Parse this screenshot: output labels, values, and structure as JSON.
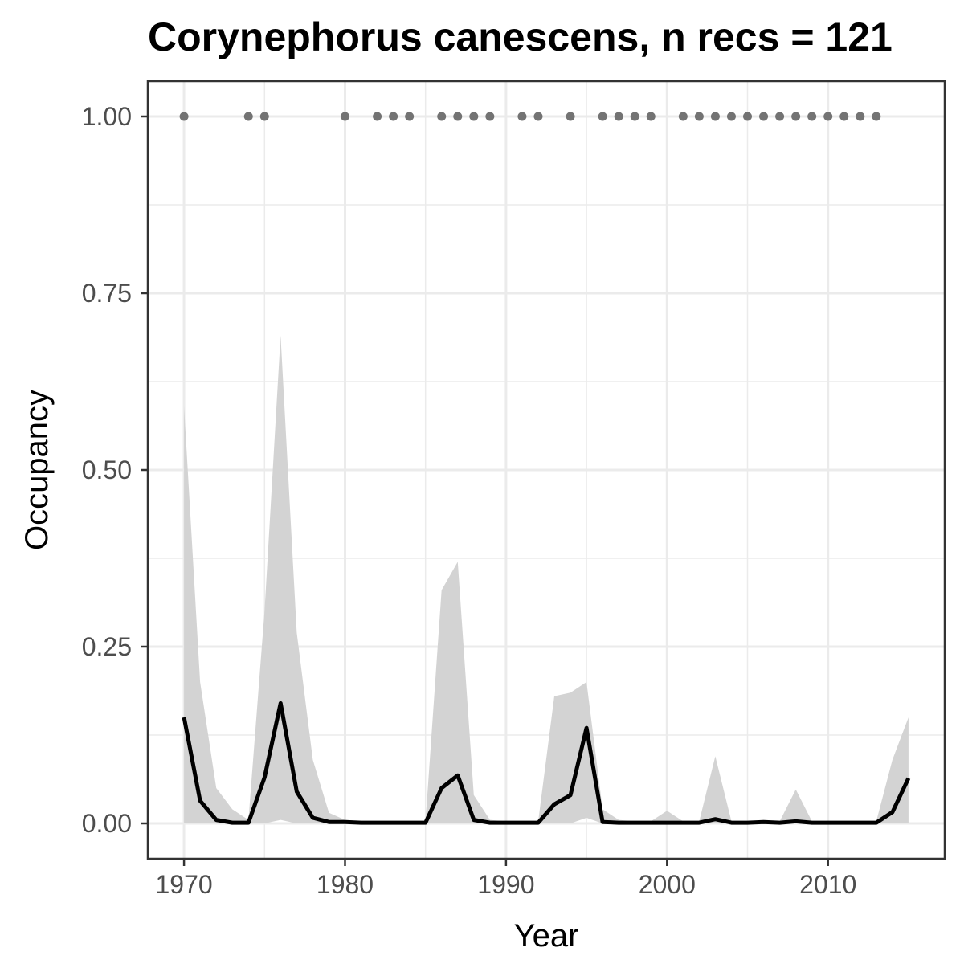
{
  "chart_data": {
    "type": "line",
    "title": "Corynephorus canescens, n recs = 121",
    "xlabel": "Year",
    "ylabel": "Occupancy",
    "xlim": [
      1967.75,
      2017.25
    ],
    "ylim": [
      -0.05,
      1.05
    ],
    "x_ticks": [
      1970,
      1980,
      1990,
      2000,
      2010
    ],
    "x_tick_labels": [
      "1970",
      "1980",
      "1990",
      "2000",
      "2010"
    ],
    "y_ticks": [
      0,
      0.25,
      0.5,
      0.75,
      1
    ],
    "y_tick_labels": [
      "0.00",
      "0.25",
      "0.50",
      "0.75",
      "1.00"
    ],
    "grid": true,
    "years": [
      1970,
      1971,
      1972,
      1973,
      1974,
      1975,
      1976,
      1977,
      1978,
      1979,
      1980,
      1981,
      1982,
      1983,
      1984,
      1985,
      1986,
      1987,
      1988,
      1989,
      1990,
      1991,
      1992,
      1993,
      1994,
      1995,
      1996,
      1997,
      1998,
      1999,
      2000,
      2001,
      2002,
      2003,
      2004,
      2005,
      2006,
      2007,
      2008,
      2009,
      2010,
      2011,
      2012,
      2013,
      2014,
      2015
    ],
    "series": [
      {
        "values": [
          0.15,
          0.032,
          0.005,
          0.001,
          0.001,
          0.065,
          0.17,
          0.045,
          0.008,
          0.002,
          0.002,
          0.001,
          0.001,
          0.001,
          0.001,
          0.001,
          0.05,
          0.068,
          0.005,
          0.001,
          0.001,
          0.001,
          0.001,
          0.027,
          0.04,
          0.135,
          0.002,
          0.001,
          0.001,
          0.001,
          0.001,
          0.001,
          0.001,
          0.006,
          0.001,
          0.001,
          0.002,
          0.001,
          0.003,
          0.001,
          0.001,
          0.001,
          0.001,
          0.001,
          0.016,
          0.064
        ],
        "lower": [
          0,
          0,
          0,
          0,
          0,
          0,
          0.005,
          0,
          0,
          0,
          0,
          0,
          0,
          0,
          0,
          0,
          0,
          0,
          0,
          0,
          0,
          0,
          0,
          0,
          0,
          0.008,
          0,
          0,
          0,
          0,
          0,
          0,
          0,
          0,
          0,
          0,
          0,
          0,
          0,
          0,
          0,
          0,
          0,
          0,
          0,
          0
        ],
        "upper": [
          0.59,
          0.2,
          0.05,
          0.02,
          0.005,
          0.3,
          0.69,
          0.27,
          0.09,
          0.015,
          0.005,
          0.003,
          0.003,
          0.003,
          0.003,
          0.003,
          0.33,
          0.37,
          0.04,
          0.005,
          0.003,
          0.003,
          0.003,
          0.18,
          0.185,
          0.2,
          0.02,
          0.005,
          0.003,
          0.003,
          0.018,
          0.003,
          0.003,
          0.095,
          0.003,
          0.003,
          0.003,
          0.003,
          0.048,
          0.003,
          0.003,
          0.003,
          0.003,
          0.003,
          0.09,
          0.15
        ],
        "line_color": "#000000",
        "ribbon_color": "#d3d3d3"
      }
    ],
    "record_years": [
      1970,
      1974,
      1975,
      1980,
      1982,
      1983,
      1984,
      1986,
      1987,
      1988,
      1989,
      1991,
      1992,
      1994,
      1996,
      1997,
      1998,
      1999,
      2001,
      2002,
      2003,
      2004,
      2005,
      2006,
      2007,
      2008,
      2009,
      2010,
      2011,
      2012,
      2013
    ],
    "record_value": 1.0,
    "record_color": "#737373"
  }
}
